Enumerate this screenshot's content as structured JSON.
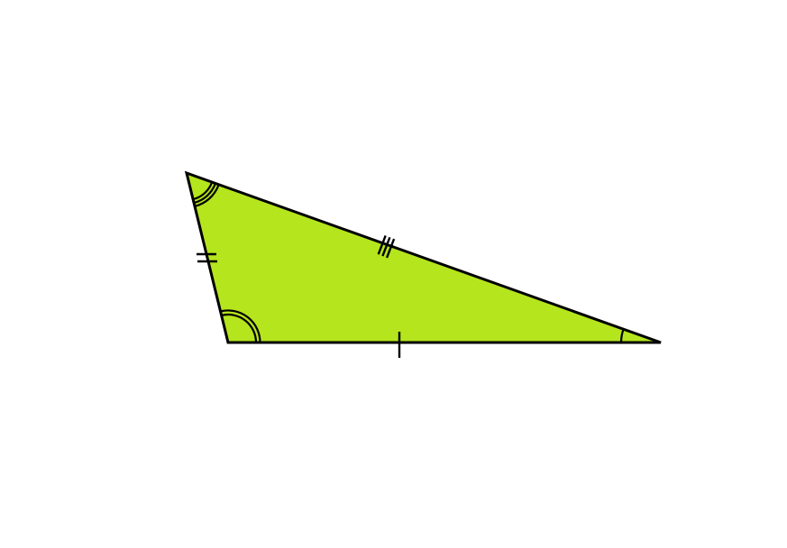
{
  "diagram": {
    "type": "triangle",
    "fill_color": "#b5e51d",
    "stroke_color": "#000000",
    "background_color": "#ffffff",
    "vertices": [
      "top-left",
      "bottom-left",
      "right"
    ],
    "side_marks": [
      {
        "side": "left",
        "tick_marks": 2
      },
      {
        "side": "bottom",
        "tick_marks": 1
      },
      {
        "side": "top",
        "tick_marks": 3
      }
    ],
    "angle_marks": [
      {
        "vertex": "top-left",
        "arcs": 3
      },
      {
        "vertex": "bottom-left",
        "arcs": 2
      },
      {
        "vertex": "right",
        "arcs": 1
      }
    ]
  }
}
